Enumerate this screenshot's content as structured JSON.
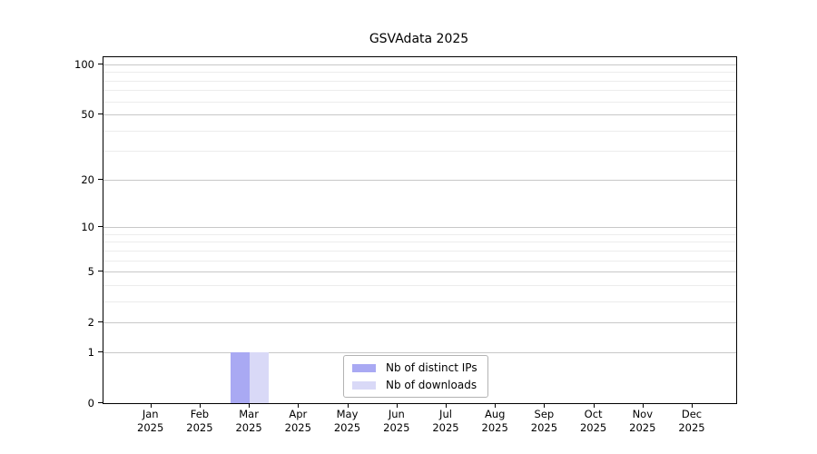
{
  "title": "GSVAdata 2025",
  "chart_data": {
    "type": "bar",
    "title": "GSVAdata 2025",
    "categories": [
      "Jan",
      "Feb",
      "Mar",
      "Apr",
      "May",
      "Jun",
      "Jul",
      "Aug",
      "Sep",
      "Oct",
      "Nov",
      "Dec"
    ],
    "year_label": "2025",
    "series": [
      {
        "name": "Nb of distinct IPs",
        "color": "#a9a9f3",
        "values": [
          0,
          0,
          1,
          0,
          0,
          0,
          0,
          0,
          0,
          0,
          0,
          0
        ]
      },
      {
        "name": "Nb of downloads",
        "color": "#d9d9f7",
        "values": [
          0,
          0,
          1,
          0,
          0,
          0,
          0,
          0,
          0,
          0,
          0,
          0
        ]
      }
    ],
    "xlabel": "",
    "ylabel": "",
    "y_scale": "log1p",
    "ylim": [
      0,
      100
    ],
    "y_ticks": [
      0,
      1,
      2,
      5,
      10,
      20,
      50,
      100
    ],
    "y_minor_gridlines": [
      3,
      4,
      6,
      7,
      8,
      9,
      30,
      40,
      60,
      70,
      80,
      90
    ],
    "grid": true,
    "legend_position": "lower center"
  },
  "colors": {
    "axis": "#000000",
    "major_grid": "#c8c8c8",
    "minor_grid": "#ececec",
    "background": "#ffffff",
    "text": "#000000"
  }
}
